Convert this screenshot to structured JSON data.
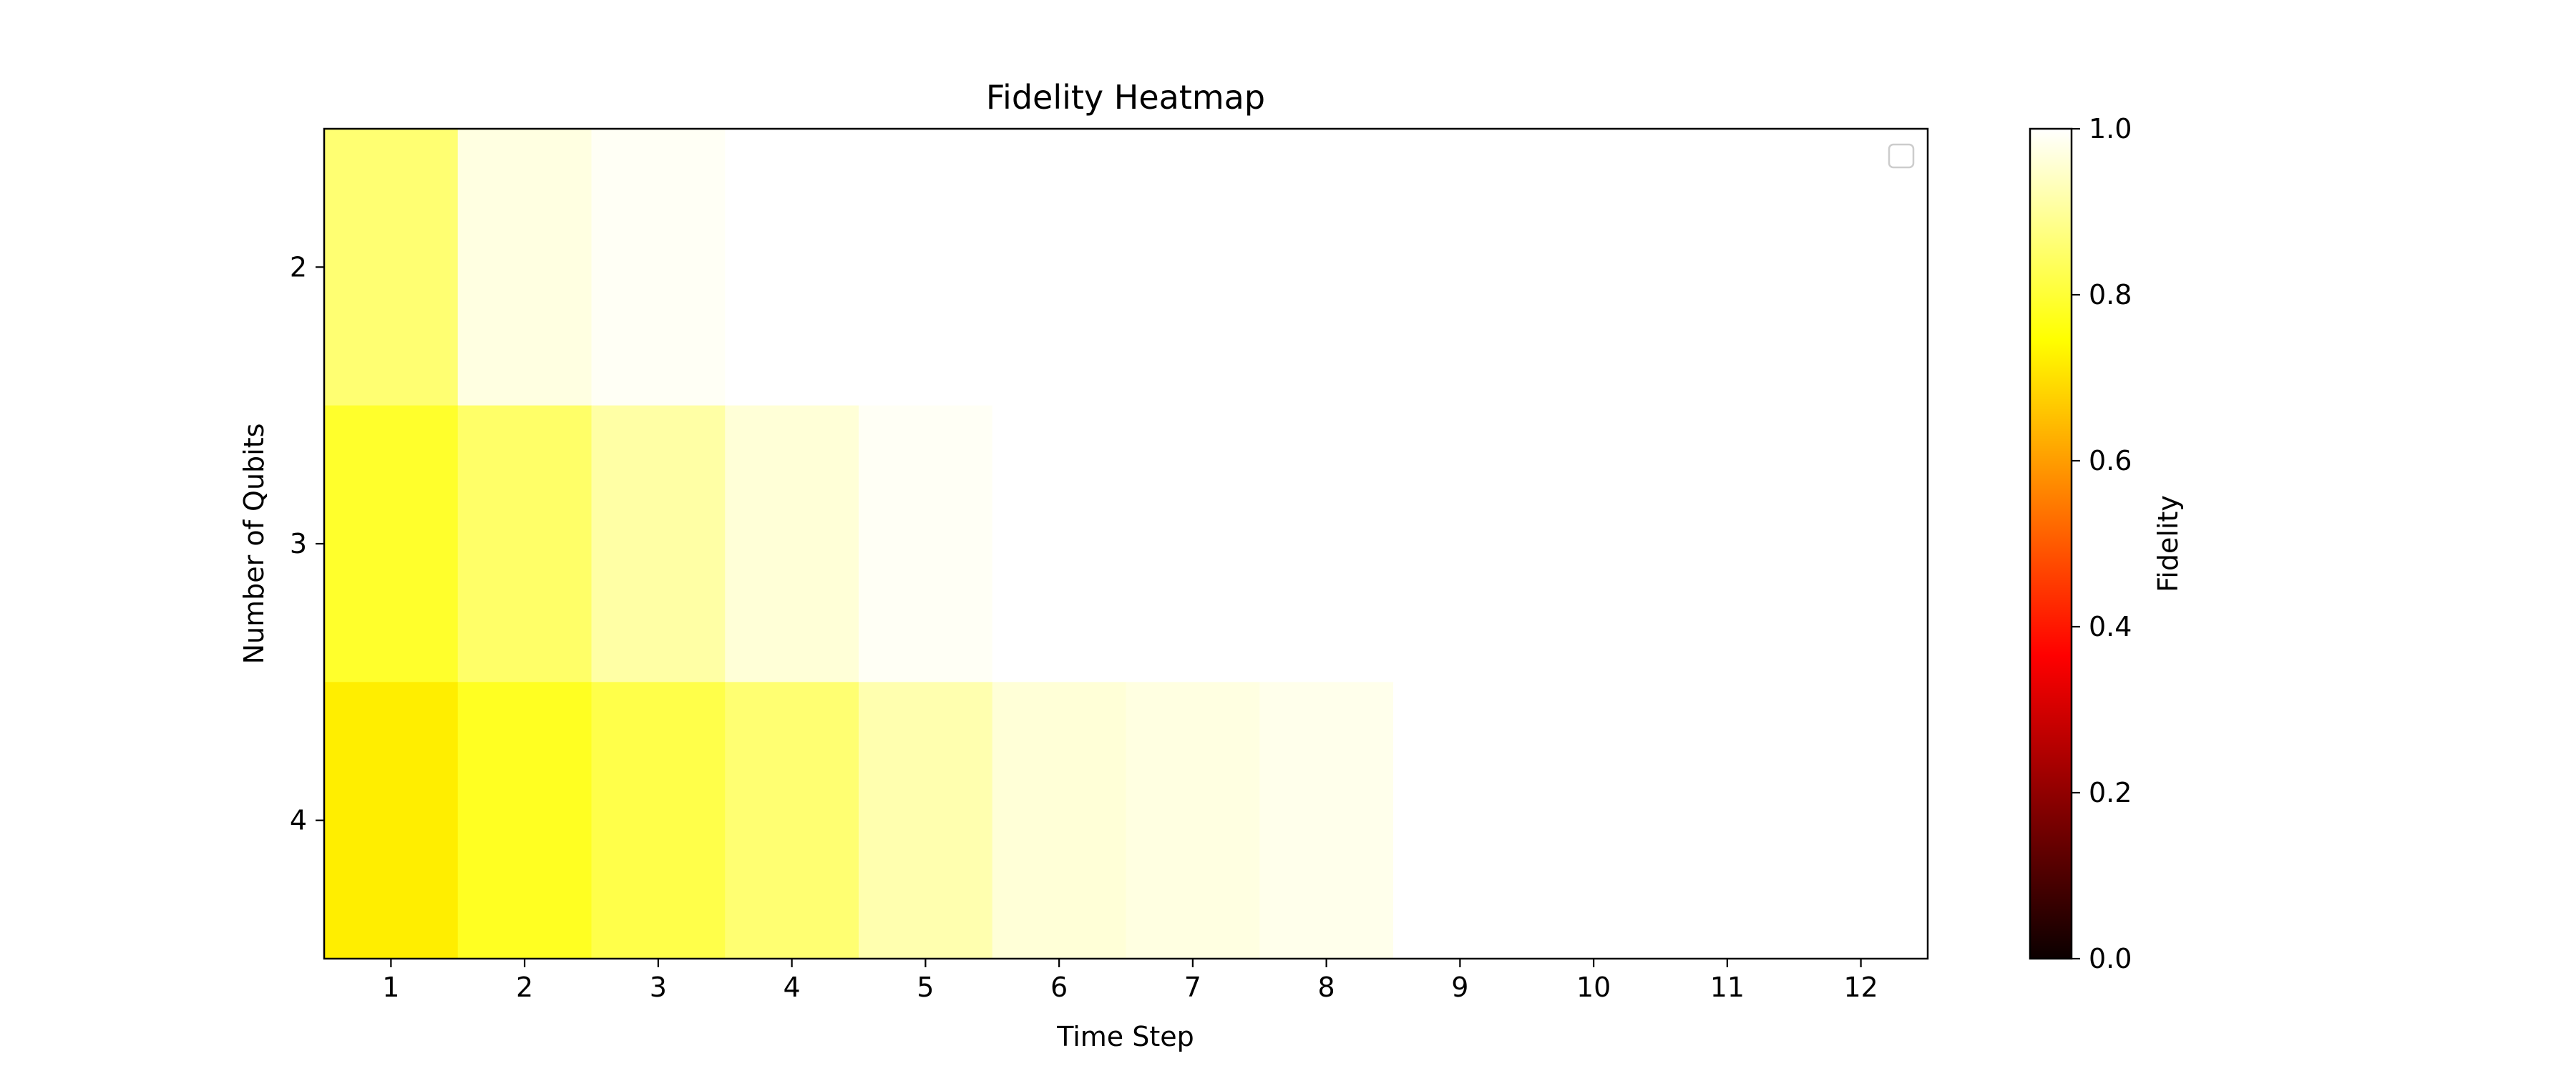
{
  "chart_data": {
    "type": "heatmap",
    "title": "Fidelity Heatmap",
    "xlabel": "Time Step",
    "ylabel": "Number of Qubits",
    "x": [
      1,
      2,
      3,
      4,
      5,
      6,
      7,
      8,
      9,
      10,
      11,
      12
    ],
    "y": [
      2,
      3,
      4
    ],
    "values": [
      [
        0.86,
        0.97,
        0.99,
        1.0,
        1.0,
        1.0,
        1.0,
        1.0,
        1.0,
        1.0,
        1.0,
        1.0
      ],
      [
        0.79,
        0.85,
        0.91,
        0.96,
        0.99,
        1.0,
        1.0,
        1.0,
        1.0,
        1.0,
        1.0,
        1.0
      ],
      [
        0.72,
        0.78,
        0.82,
        0.86,
        0.92,
        0.96,
        0.97,
        0.98,
        1.0,
        1.0,
        1.0,
        1.0
      ]
    ],
    "colormap": "hot",
    "vmin": 0.0,
    "vmax": 1.0,
    "colorbar": {
      "label": "Fidelity",
      "ticks": [
        "0.0",
        "0.2",
        "0.4",
        "0.6",
        "0.8",
        "1.0"
      ]
    },
    "legend": {
      "placement": "top-right",
      "entries": []
    },
    "grid": false
  }
}
